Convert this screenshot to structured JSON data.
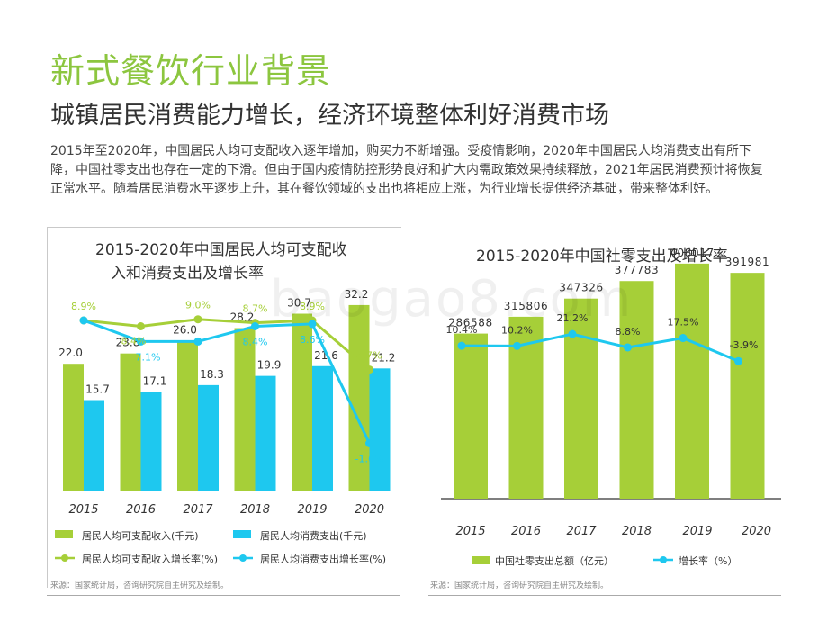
{
  "title": "新式餐饮行业背景",
  "subtitle": "城镇居民消费能力增长，经济环境整体利好消费市场",
  "intro": "2015年至2020年，中国居民人均可支配收入逐年增加，购买力不断增强。受疫情影响，2020年中国居民人均消费支出有所下降，中国社零支出也存在一定的下滑。但由于国内疫情防控形势良好和扩大内需政策效果持续释放，2021年居民消费预计将恢复正常水平。随着居民消费水平逐步上升，其在餐饮领域的支出也将相应上涨，为行业增长提供经济基础，带来整体利好。",
  "watermark": "baogao8.com",
  "colors": {
    "green": "#a6cf38",
    "blue": "#1ec8ef",
    "title_green": "#8cc63f"
  },
  "chart_data": [
    {
      "type": "bar",
      "title": "2015-2020年中国居民人均可支配收入和消费支出及增长率",
      "title_lines": [
        "2015-2020年中国居民人均可支配收",
        "入和消费支出及增长率"
      ],
      "categories": [
        "2015",
        "2016",
        "2017",
        "2018",
        "2019",
        "2020"
      ],
      "series": [
        {
          "name": "居民人均可支配收入(千元)",
          "kind": "bar",
          "color": "#a6cf38",
          "values": [
            22.0,
            23.8,
            26.0,
            28.2,
            30.7,
            32.2
          ],
          "labels": [
            "22.0",
            "23.8",
            "26.0",
            "28.2",
            "30.7",
            "32.2"
          ]
        },
        {
          "name": "居民人均消费支出(千元)",
          "kind": "bar",
          "color": "#1ec8ef",
          "values": [
            15.7,
            17.1,
            18.3,
            19.9,
            21.6,
            21.2
          ],
          "labels": [
            "15.7",
            "17.1",
            "18.3",
            "19.9",
            "21.6",
            "21.2"
          ]
        },
        {
          "name": "居民人均可支配收入增长率(%)",
          "kind": "line",
          "color": "#a6cf38",
          "values": [
            8.9,
            8.4,
            9.0,
            8.7,
            8.9,
            4.7
          ],
          "labels": [
            "8.9%",
            "8.4%",
            "9.0%",
            "8.7%",
            "8.9%",
            "4.7%"
          ]
        },
        {
          "name": "居民人均消费支出增长率(%)",
          "kind": "line",
          "color": "#1ec8ef",
          "values": [
            8.9,
            7.1,
            7.1,
            8.4,
            8.6,
            -1.6
          ],
          "labels": [
            "",
            "7.1%",
            "",
            "8.4%",
            "8.6%",
            "-1.6%"
          ]
        }
      ],
      "source": "来源：国家统计局，咨询研究院自主研究及绘制。"
    },
    {
      "type": "bar",
      "title": "2015-2020年中国社零支出及增长率",
      "categories": [
        "2015",
        "2016",
        "2017",
        "2018",
        "2019",
        "2020"
      ],
      "series": [
        {
          "name": "中国社零支出总额（亿元）",
          "kind": "bar",
          "color": "#a6cf38",
          "values": [
            286588,
            315806,
            347326,
            377783,
            408017,
            391981
          ],
          "labels": [
            "286588",
            "315806",
            "347326",
            "377783",
            "408017",
            "391981"
          ]
        },
        {
          "name": "增长率（%）",
          "kind": "line",
          "color": "#1ec8ef",
          "values": [
            10.4,
            10.2,
            21.2,
            8.8,
            17.5,
            -3.9
          ],
          "labels": [
            "10.4%",
            "10.2%",
            "21.2%",
            "8.8%",
            "17.5%",
            "-3.9%"
          ]
        }
      ],
      "source": "来源：国家统计局，咨询研究院自主研究及绘制。"
    }
  ]
}
